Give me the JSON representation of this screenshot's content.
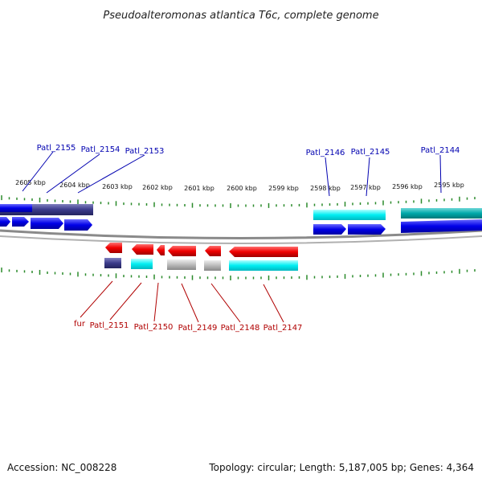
{
  "header": {
    "title": "Pseudoalteromonas atlantica T6c, complete genome"
  },
  "footer": {
    "accession": "Accession: NC_008228",
    "topology": "Topology: circular; Length: 5,187,005 bp; Genes: 4,364"
  },
  "scale": {
    "ticks": [
      "2605 kbp",
      "2604 kbp",
      "2603 kbp",
      "2602 kbp",
      "2601 kbp",
      "2600 kbp",
      "2599 kbp",
      "2598 kbp",
      "2597 kbp",
      "2596 kbp",
      "2595 kbp"
    ]
  },
  "genes_top": [
    {
      "name": "Patl_2155"
    },
    {
      "name": "Patl_2154"
    },
    {
      "name": "Patl_2153"
    },
    {
      "name": "Patl_2146"
    },
    {
      "name": "Patl_2145"
    },
    {
      "name": "Patl_2144"
    }
  ],
  "genes_bottom": [
    {
      "name": "fur"
    },
    {
      "name": "Patl_2151"
    },
    {
      "name": "Patl_2150"
    },
    {
      "name": "Patl_2149"
    },
    {
      "name": "Patl_2148"
    },
    {
      "name": "Patl_2147"
    }
  ],
  "colors": {
    "forward_gene": "#0000e0",
    "reverse_gene": "#e00000",
    "cyan_box": "#00e0e8",
    "teal_box": "#00a8a8",
    "navy_box": "#3a3a8a",
    "grey_box": "#b8b8b8",
    "tick": "#2a8a2a",
    "backbone": "#808080"
  }
}
